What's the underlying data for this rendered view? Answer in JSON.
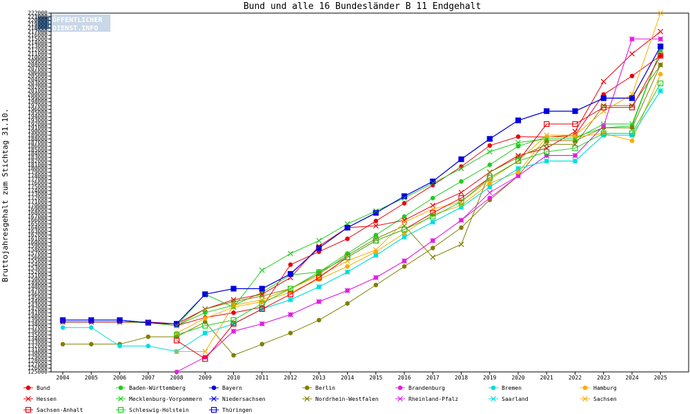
{
  "chart_data": {
    "type": "line",
    "title": "Bund und alle 16 Bundesländer B 11 Endgehalt",
    "xlabel": "",
    "ylabel": "Bruttojahresgehalt zum Stichtag 31.10.",
    "x": [
      2004,
      2005,
      2006,
      2007,
      2008,
      2009,
      2010,
      2011,
      2012,
      2013,
      2014,
      2015,
      2016,
      2017,
      2018,
      2019,
      2020,
      2021,
      2022,
      2023,
      2024,
      2025
    ],
    "ylim": [
      125000,
      222000
    ],
    "ytick_step": 1000,
    "grid": false,
    "legend_position": "bottom",
    "series": [
      {
        "name": "Bund",
        "color": "#e8000b",
        "marker": "dot",
        "values": [
          138500,
          138500,
          138500,
          138500,
          137500,
          139700,
          141000,
          142500,
          154000,
          157500,
          161000,
          165800,
          170600,
          175500,
          180500,
          186200,
          188600,
          188500,
          189000,
          200000,
          205000,
          210500
        ]
      },
      {
        "name": "Baden-Württemberg",
        "color": "#22cc22",
        "marker": "dot",
        "values": [
          138500,
          138500,
          138500,
          138300,
          137500,
          141000,
          143000,
          146500,
          151200,
          152000,
          157000,
          162000,
          167000,
          172000,
          176500,
          181000,
          186000,
          188500,
          188500,
          191000,
          191500,
          212000
        ]
      },
      {
        "name": "Bayern",
        "color": "#0000dd",
        "marker": "dot",
        "values": [
          139000,
          139000,
          139000,
          138300,
          138000,
          146000,
          147500,
          147500,
          151500,
          158500,
          164000,
          168000,
          172500,
          176500,
          182500,
          188000,
          193000,
          195500,
          195500,
          199000,
          199000,
          213000
        ]
      },
      {
        "name": "Berlin",
        "color": "#808000",
        "marker": "dot",
        "values": [
          132500,
          132500,
          132500,
          134500,
          134500,
          138500,
          129500,
          132500,
          135500,
          139000,
          143500,
          148500,
          153500,
          158500,
          164000,
          171500,
          178000,
          187500,
          187500,
          191000,
          191000,
          208000
        ]
      },
      {
        "name": "Brandenburg",
        "color": "#e020e0",
        "marker": "dot",
        "values": [
          null,
          null,
          null,
          null,
          125000,
          129000,
          136000,
          138000,
          140500,
          144000,
          147000,
          150500,
          155000,
          160500,
          166000,
          172000,
          178000,
          183500,
          183500,
          191500,
          215000,
          215000
        ]
      },
      {
        "name": "Bremen",
        "color": "#00dddd",
        "marker": "dot",
        "values": [
          137000,
          137000,
          132000,
          132000,
          130500,
          135500,
          138000,
          142000,
          144500,
          148000,
          152000,
          156500,
          161500,
          165500,
          169500,
          175000,
          180000,
          182000,
          182000,
          189000,
          189000,
          201000
        ]
      },
      {
        "name": "Hamburg",
        "color": "#ffaa00",
        "marker": "dot",
        "values": [
          null,
          null,
          null,
          null,
          135500,
          139500,
          142500,
          144000,
          146500,
          150000,
          153500,
          157500,
          162500,
          167500,
          170000,
          176000,
          179000,
          188500,
          188500,
          189500,
          187500,
          205500
        ]
      },
      {
        "name": "Hessen",
        "color": "#e8000b",
        "marker": "x",
        "values": [
          138500,
          138500,
          138500,
          138500,
          138000,
          142000,
          144500,
          146000,
          150500,
          159000,
          164000,
          164500,
          166000,
          170000,
          173500,
          179000,
          183500,
          185500,
          190000,
          203500,
          211000,
          217000
        ]
      },
      {
        "name": "Mecklenburg-Vorpommern",
        "color": "#22cc22",
        "marker": "x",
        "values": [
          null,
          null,
          null,
          null,
          137500,
          146000,
          142500,
          152500,
          157000,
          160500,
          165000,
          168500,
          172000,
          176000,
          180000,
          184500,
          187000,
          188000,
          188000,
          192000,
          192000,
          212000
        ]
      },
      {
        "name": "Niedersachsen",
        "color": "#0000dd",
        "marker": "x",
        "values": [
          139000,
          139000,
          139000,
          138300,
          138000,
          146000,
          147500,
          147500,
          151500,
          158500,
          164000,
          168000,
          172500,
          176500,
          182500,
          188000,
          193000,
          195500,
          195500,
          199000,
          199000,
          213000
        ]
      },
      {
        "name": "Nordrhein-Westfalen",
        "color": "#808000",
        "marker": "x",
        "values": [
          null,
          null,
          null,
          null,
          137500,
          142000,
          144000,
          145500,
          147500,
          151500,
          156500,
          161000,
          164500,
          156000,
          159500,
          179000,
          183000,
          186500,
          186500,
          197000,
          197000,
          208000
        ]
      },
      {
        "name": "Rheinland-Pfalz",
        "color": "#e020e0",
        "marker": "x",
        "values": [
          null,
          null,
          null,
          null,
          null,
          129000,
          136000,
          138000,
          140500,
          144000,
          147000,
          150500,
          155000,
          160500,
          166000,
          173500,
          178000,
          183500,
          183500,
          191500,
          215000,
          215000
        ]
      },
      {
        "name": "Saarland",
        "color": "#00dddd",
        "marker": "x",
        "values": [
          null,
          null,
          null,
          null,
          null,
          135500,
          138000,
          142000,
          144500,
          148000,
          152000,
          156500,
          161500,
          165500,
          169500,
          175000,
          180000,
          182000,
          182000,
          189000,
          189000,
          201000
        ]
      },
      {
        "name": "Sachsen",
        "color": "#ffaa00",
        "marker": "x",
        "values": [
          null,
          null,
          null,
          null,
          130500,
          130500,
          143000,
          144500,
          147500,
          151000,
          155000,
          158000,
          165500,
          169000,
          171000,
          177000,
          182000,
          189000,
          189000,
          195500,
          200000,
          222000
        ]
      },
      {
        "name": "Sachsen-Anhalt",
        "color": "#e8000b",
        "marker": "square",
        "values": [
          null,
          null,
          null,
          null,
          133500,
          128500,
          138000,
          142000,
          146000,
          150500,
          156000,
          160500,
          163500,
          168000,
          172000,
          177500,
          182000,
          192000,
          192000,
          196500,
          196500,
          210500
        ]
      },
      {
        "name": "Schleswig-Holstein",
        "color": "#22cc22",
        "marker": "square",
        "values": [
          null,
          null,
          null,
          null,
          135000,
          137500,
          139000,
          143500,
          147500,
          152000,
          156000,
          160500,
          163500,
          167000,
          171000,
          177500,
          182000,
          184500,
          185500,
          189500,
          189500,
          203000
        ]
      },
      {
        "name": "Thüringen",
        "color": "#0000dd",
        "marker": "square",
        "values": [
          139000,
          139000,
          139000,
          138300,
          138000,
          146000,
          147500,
          147500,
          151500,
          158500,
          164000,
          168000,
          172500,
          176500,
          182500,
          188000,
          193000,
          195500,
          195500,
          199000,
          199000,
          213000
        ]
      }
    ]
  },
  "logo": {
    "line1": "ÖFFENTLICHER",
    "line2": "DIENST.INFO"
  }
}
